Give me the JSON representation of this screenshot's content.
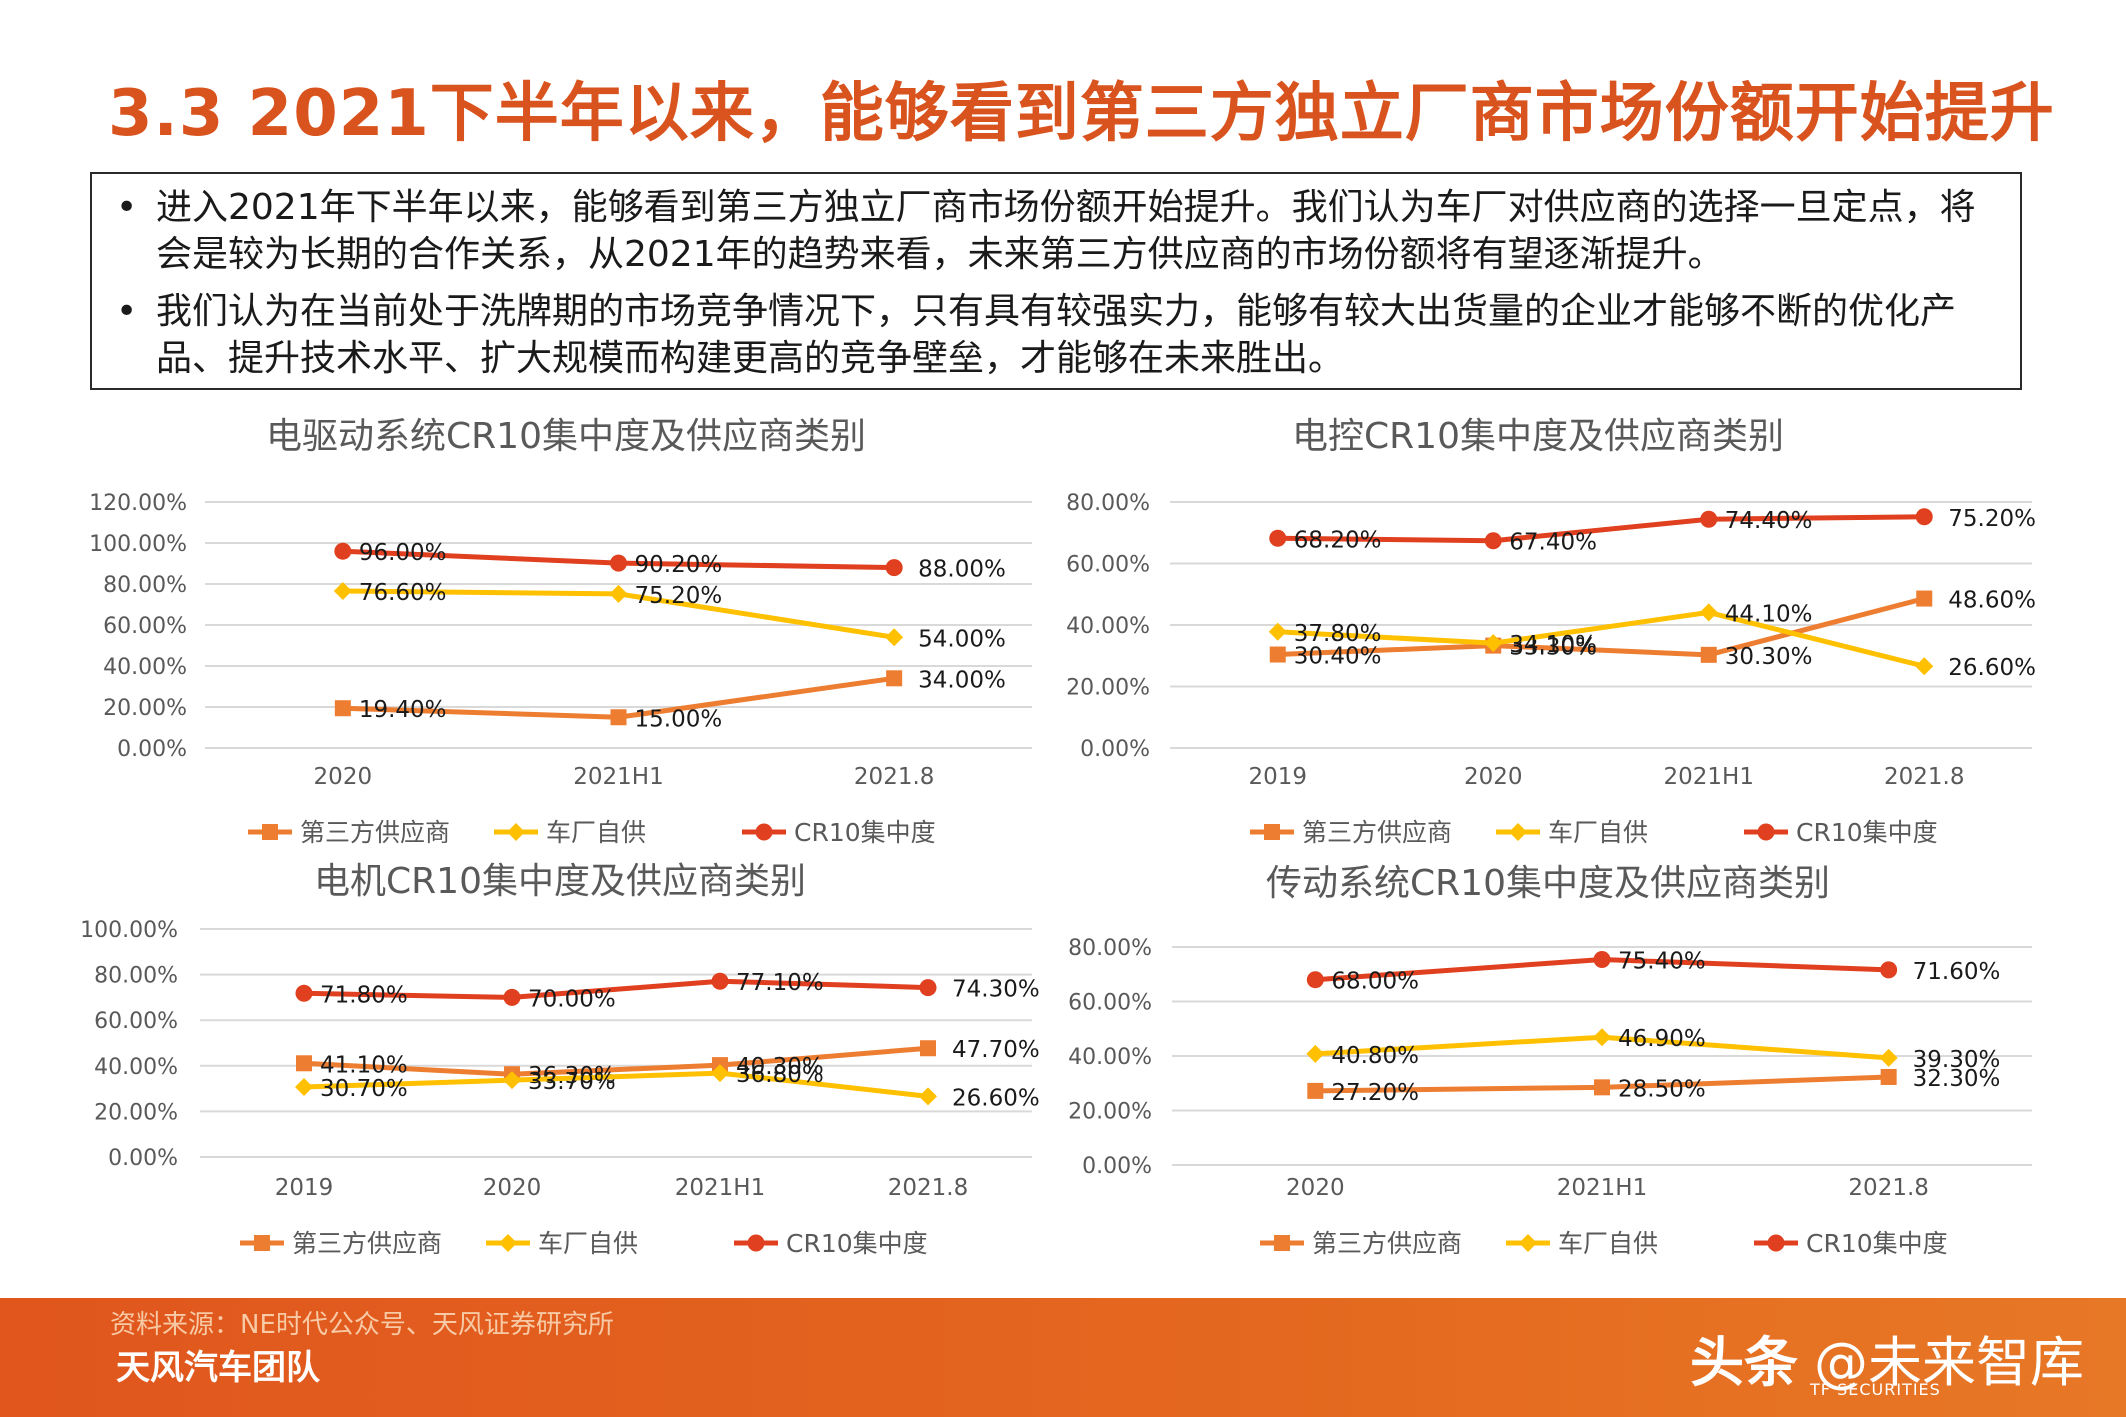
{
  "title": "3.3 2021下半年以来，能够看到第三方独立厂商市场份额开始提升",
  "bullets": [
    "进入2021年下半年以来，能够看到第三方独立厂商市场份额开始提升。我们认为车厂对供应商的选择一旦定点，将会是较为长期的合作关系，从2021年的趋势来看，未来第三方供应商的市场份额将有望逐渐提升。",
    "我们认为在当前处于洗牌期的市场竞争情况下，只有具有较强实力，能够有较大出货量的企业才能够不断的优化产品、提升技术水平、扩大规模而构建更高的竞争壁垒，才能够在未来胜出。"
  ],
  "colors": {
    "title": "#d9531e",
    "third_party": "#ed7d31",
    "oem": "#ffc000",
    "cr10": "#e0401f",
    "grid": "#d9d9d9",
    "footer": "#e0561d"
  },
  "chart_data": [
    {
      "type": "line",
      "title": "电驱动系统CR10集中度及供应商类别",
      "categories": [
        "2020",
        "2021H1",
        "2021.8"
      ],
      "yticks": [
        "0.00%",
        "20.00%",
        "40.00%",
        "60.00%",
        "80.00%",
        "100.00%",
        "120.00%"
      ],
      "ylim": [
        0,
        120
      ],
      "series": [
        {
          "name": "第三方供应商",
          "marker": "square",
          "values": [
            19.4,
            15.0,
            34.0
          ],
          "labels": [
            "19.40%",
            "15.00%",
            "34.00%"
          ]
        },
        {
          "name": "车厂自供",
          "marker": "diamond",
          "values": [
            76.6,
            75.2,
            54.0
          ],
          "labels": [
            "76.60%",
            "75.20%",
            "54.00%"
          ]
        },
        {
          "name": "CR10集中度",
          "marker": "circle",
          "values": [
            96.0,
            90.2,
            88.0
          ],
          "labels": [
            "96.00%",
            "90.20%",
            "88.00%"
          ]
        }
      ],
      "legend": "bottom"
    },
    {
      "type": "line",
      "title": "电控CR10集中度及供应商类别",
      "categories": [
        "2019",
        "2020",
        "2021H1",
        "2021.8"
      ],
      "yticks": [
        "0.00%",
        "20.00%",
        "40.00%",
        "60.00%",
        "80.00%"
      ],
      "ylim": [
        0,
        80
      ],
      "series": [
        {
          "name": "第三方供应商",
          "marker": "square",
          "values": [
            30.4,
            33.3,
            30.3,
            48.6
          ],
          "labels": [
            "30.40%",
            "33.30%",
            "30.30%",
            "48.60%"
          ]
        },
        {
          "name": "车厂自供",
          "marker": "diamond",
          "values": [
            37.8,
            34.1,
            44.1,
            26.6
          ],
          "labels": [
            "37.80%",
            "34.10%",
            "44.10%",
            "26.60%"
          ]
        },
        {
          "name": "CR10集中度",
          "marker": "circle",
          "values": [
            68.2,
            67.4,
            74.4,
            75.2
          ],
          "labels": [
            "68.20%",
            "67.40%",
            "74.40%",
            "75.20%"
          ]
        }
      ],
      "legend": "bottom"
    },
    {
      "type": "line",
      "title": "电机CR10集中度及供应商类别",
      "categories": [
        "2019",
        "2020",
        "2021H1",
        "2021.8"
      ],
      "yticks": [
        "0.00%",
        "20.00%",
        "40.00%",
        "60.00%",
        "80.00%",
        "100.00%"
      ],
      "ylim": [
        0,
        100
      ],
      "series": [
        {
          "name": "第三方供应商",
          "marker": "square",
          "values": [
            41.1,
            36.3,
            40.3,
            47.7
          ],
          "labels": [
            "41.10%",
            "36.30%",
            "40.30%",
            "47.70%"
          ]
        },
        {
          "name": "车厂自供",
          "marker": "diamond",
          "values": [
            30.7,
            33.7,
            36.8,
            26.6
          ],
          "labels": [
            "30.70%",
            "33.70%",
            "36.80%",
            "26.60%"
          ]
        },
        {
          "name": "CR10集中度",
          "marker": "circle",
          "values": [
            71.8,
            70.0,
            77.1,
            74.3
          ],
          "labels": [
            "71.80%",
            "70.00%",
            "77.10%",
            "74.30%"
          ]
        }
      ],
      "legend": "bottom"
    },
    {
      "type": "line",
      "title": "传动系统CR10集中度及供应商类别",
      "categories": [
        "2020",
        "2021H1",
        "2021.8"
      ],
      "yticks": [
        "0.00%",
        "20.00%",
        "40.00%",
        "60.00%",
        "80.00%"
      ],
      "ylim": [
        0,
        80
      ],
      "series": [
        {
          "name": "第三方供应商",
          "marker": "square",
          "values": [
            27.2,
            28.5,
            32.3
          ],
          "labels": [
            "27.20%",
            "28.50%",
            "32.30%"
          ]
        },
        {
          "name": "车厂自供",
          "marker": "diamond",
          "values": [
            40.8,
            46.9,
            39.3
          ],
          "labels": [
            "40.80%",
            "46.90%",
            "39.30%"
          ]
        },
        {
          "name": "CR10集中度",
          "marker": "circle",
          "values": [
            68.0,
            75.4,
            71.6
          ],
          "labels": [
            "68.00%",
            "75.40%",
            "71.60%"
          ]
        }
      ],
      "legend": "bottom"
    }
  ],
  "footer": {
    "source": "资料来源：NE时代公众号、天风证券研究所",
    "team": "天风汽车团队",
    "logo_text": "头条",
    "handle": "@未来智库",
    "sub": "TF SECURITIES"
  }
}
